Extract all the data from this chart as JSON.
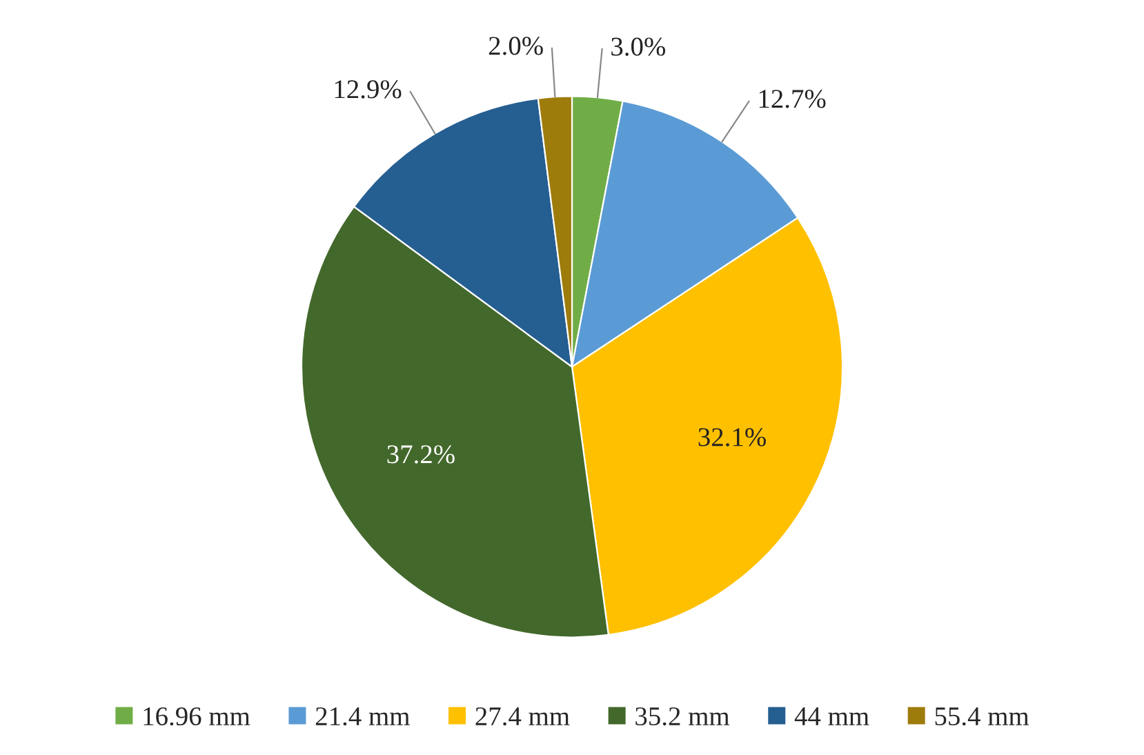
{
  "chart_data": {
    "type": "pie",
    "categories": [
      "16.96 mm",
      "21.4 mm",
      "27.4 mm",
      "35.2 mm",
      "44 mm",
      "55.4 mm"
    ],
    "values": [
      3.0,
      12.7,
      32.1,
      37.2,
      12.9,
      2.0
    ],
    "value_labels": [
      "3.0%",
      "12.7%",
      "32.1%",
      "37.2%",
      "12.9%",
      "2.0%"
    ],
    "colors": [
      "#70ad47",
      "#5b9bd5",
      "#ffc000",
      "#43682b",
      "#255e91",
      "#9e7c0c"
    ],
    "legend": "bottom"
  }
}
